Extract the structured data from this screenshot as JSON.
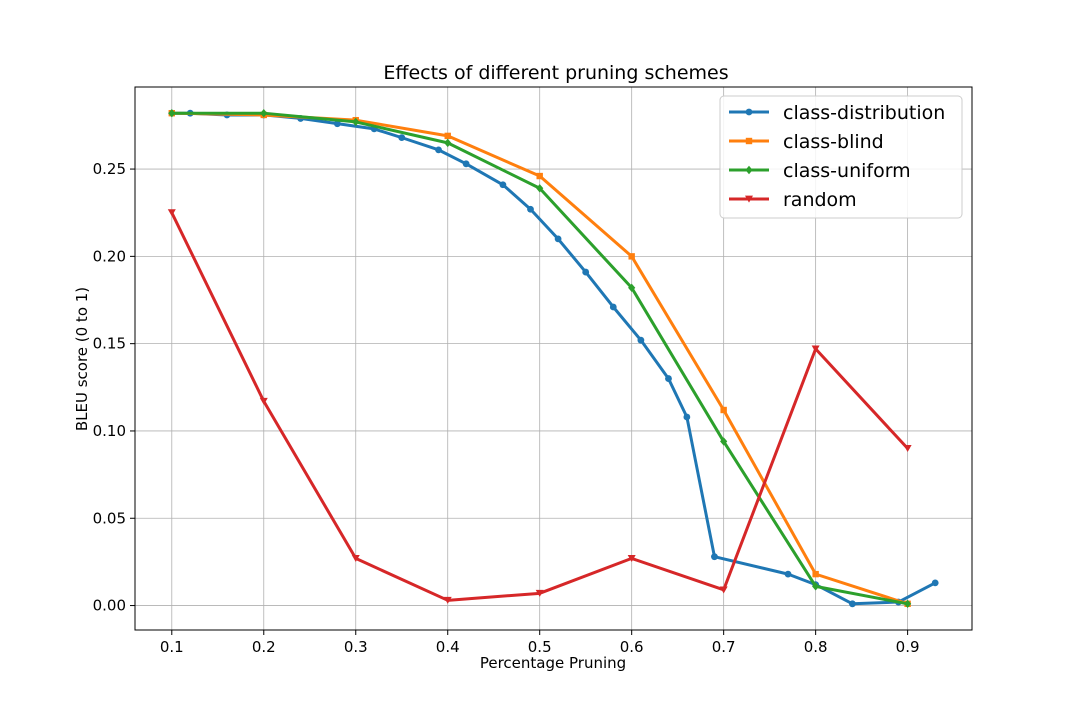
{
  "chart_data": {
    "type": "line",
    "title": "Effects of different pruning schemes",
    "xlabel": "Percentage Pruning",
    "ylabel": "BLEU score (0 to 1)",
    "xlim": [
      0.06,
      0.97
    ],
    "ylim": [
      -0.014,
      0.297
    ],
    "xticks": [
      0.1,
      0.2,
      0.3,
      0.4,
      0.5,
      0.6,
      0.7,
      0.8,
      0.9
    ],
    "xtick_labels": [
      "0.1",
      "0.2",
      "0.3",
      "0.4",
      "0.5",
      "0.6",
      "0.7",
      "0.8",
      "0.9"
    ],
    "yticks": [
      0.0,
      0.05,
      0.1,
      0.15,
      0.2,
      0.25
    ],
    "ytick_labels": [
      "0.00",
      "0.05",
      "0.10",
      "0.15",
      "0.20",
      "0.25"
    ],
    "grid": true,
    "legend_position": "top-right",
    "series": [
      {
        "name": "class-distribution",
        "color": "#1f77b4",
        "marker": "circle",
        "x": [
          0.1,
          0.12,
          0.16,
          0.2,
          0.24,
          0.28,
          0.32,
          0.35,
          0.39,
          0.42,
          0.46,
          0.49,
          0.52,
          0.55,
          0.58,
          0.61,
          0.64,
          0.66,
          0.69,
          0.77,
          0.8,
          0.84,
          0.89,
          0.93
        ],
        "y": [
          0.282,
          0.282,
          0.281,
          0.281,
          0.279,
          0.276,
          0.273,
          0.268,
          0.261,
          0.253,
          0.241,
          0.227,
          0.21,
          0.191,
          0.171,
          0.152,
          0.13,
          0.108,
          0.028,
          0.018,
          0.012,
          0.001,
          0.002,
          0.013
        ]
      },
      {
        "name": "class-blind",
        "color": "#ff7f0e",
        "marker": "square",
        "x": [
          0.1,
          0.2,
          0.3,
          0.4,
          0.5,
          0.6,
          0.7,
          0.8,
          0.9
        ],
        "y": [
          0.282,
          0.281,
          0.278,
          0.269,
          0.246,
          0.2,
          0.112,
          0.018,
          0.001
        ]
      },
      {
        "name": "class-uniform",
        "color": "#2ca02c",
        "marker": "diamond",
        "x": [
          0.1,
          0.2,
          0.3,
          0.4,
          0.5,
          0.6,
          0.7,
          0.8,
          0.9
        ],
        "y": [
          0.282,
          0.282,
          0.277,
          0.265,
          0.239,
          0.182,
          0.094,
          0.011,
          0.001
        ]
      },
      {
        "name": "random",
        "color": "#d62728",
        "marker": "triangle-down",
        "x": [
          0.1,
          0.2,
          0.3,
          0.4,
          0.5,
          0.6,
          0.7,
          0.8,
          0.9
        ],
        "y": [
          0.225,
          0.117,
          0.027,
          0.003,
          0.007,
          0.027,
          0.009,
          0.147,
          0.09
        ]
      }
    ]
  }
}
